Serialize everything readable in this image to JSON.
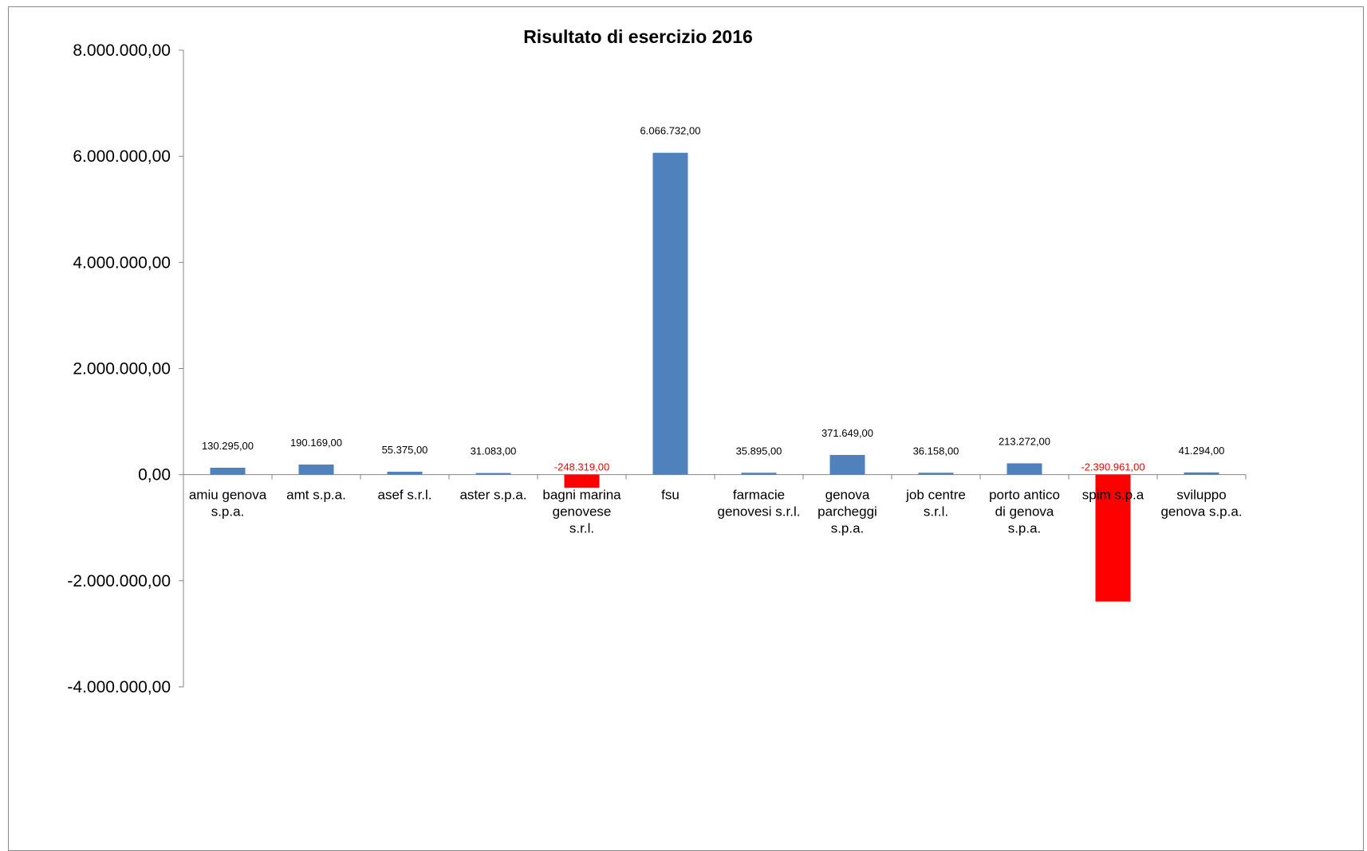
{
  "chart_data": {
    "type": "bar",
    "title": "Risultato di esercizio 2016",
    "xlabel": "",
    "ylabel": "",
    "ylim": [
      -4000000,
      8000000
    ],
    "yticks": [
      8000000,
      6000000,
      4000000,
      2000000,
      0,
      -2000000,
      -4000000
    ],
    "ytick_labels": [
      "8.000.000,00",
      "6.000.000,00",
      "4.000.000,00",
      "2.000.000,00",
      "0,00",
      "-2.000.000,00",
      "-4.000.000,00"
    ],
    "grid": false,
    "categories": [
      [
        "amiu genova",
        "s.p.a."
      ],
      [
        "amt s.p.a."
      ],
      [
        "asef s.r.l."
      ],
      [
        "aster s.p.a."
      ],
      [
        "bagni marina",
        "genovese",
        "s.r.l."
      ],
      [
        "fsu"
      ],
      [
        "farmacie",
        "genovesi s.r.l."
      ],
      [
        "genova",
        "parcheggi",
        "s.p.a."
      ],
      [
        "job centre",
        "s.r.l."
      ],
      [
        "porto antico",
        "di genova",
        "s.p.a."
      ],
      [
        "spim s.p.a"
      ],
      [
        "sviluppo",
        "genova s.p.a."
      ]
    ],
    "values": [
      130295,
      190169,
      55375,
      31083,
      -248319,
      6066732,
      35895,
      371649,
      36158,
      213272,
      -2390961,
      41294
    ],
    "value_labels": [
      "130.295,00",
      "190.169,00",
      "55.375,00",
      "31.083,00",
      "-248.319,00",
      "6.066.732,00",
      "35.895,00",
      "371.649,00",
      "36.158,00",
      "213.272,00",
      "-2.390.961,00",
      "41.294,00"
    ],
    "colors": {
      "positive": "#4f81bd",
      "negative": "#ff0000",
      "negative_label": "#ff0000",
      "positive_label": "#000000",
      "axis": "#868686"
    }
  }
}
